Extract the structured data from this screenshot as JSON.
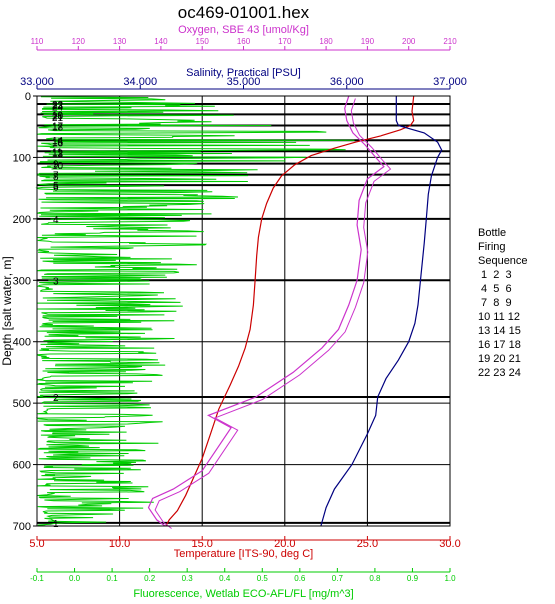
{
  "chart_data": {
    "type": "line",
    "title": "oc469-01001.hex",
    "y_axis": {
      "label": "Depth [salt water, m]",
      "range": [
        0,
        700
      ],
      "ticks": [
        "0",
        "100",
        "200",
        "300",
        "400",
        "500",
        "600",
        "700"
      ]
    },
    "x_axes": [
      {
        "id": "oxygen",
        "label": "Oxygen, SBE 43 [umol/Kg]",
        "color": "#cc33cc",
        "position": "top-1",
        "range": [
          110,
          210
        ],
        "ticks": [
          "110",
          "120",
          "130",
          "140",
          "150",
          "160",
          "170",
          "180",
          "190",
          "200",
          "210"
        ]
      },
      {
        "id": "salinity",
        "label": "Salinity, Practical [PSU]",
        "color": "#000080",
        "position": "top-2",
        "range": [
          33,
          37
        ],
        "ticks": [
          "33.000",
          "34.000",
          "35.000",
          "36.000",
          "37.000"
        ]
      },
      {
        "id": "temperature",
        "label": "Temperature [ITS-90, deg C]",
        "color": "#cc0000",
        "position": "bottom-1",
        "range": [
          5,
          30
        ],
        "ticks": [
          "5.0",
          "10.0",
          "15.0",
          "20.0",
          "25.0",
          "30.0"
        ]
      },
      {
        "id": "fluorescence",
        "label": "Fluorescence, Wetlab ECO-AFL/FL [mg/m^3]",
        "color": "#00cc00",
        "position": "bottom-2",
        "range": [
          -0.1,
          1.0
        ],
        "ticks": [
          "-0.1",
          "0.0",
          "0.1",
          "0.2",
          "0.3",
          "0.4",
          "0.5",
          "0.6",
          "0.7",
          "0.8",
          "0.9",
          "1.0"
        ]
      }
    ],
    "series": [
      {
        "name": "Temperature [ITS-90, deg C]",
        "axis": "temperature",
        "color": "#cc0000",
        "points": [
          [
            27.8,
            0
          ],
          [
            27.7,
            25
          ],
          [
            27.8,
            40
          ],
          [
            27.6,
            48
          ],
          [
            27.0,
            55
          ],
          [
            25.8,
            65
          ],
          [
            24.3,
            75
          ],
          [
            23.0,
            85
          ],
          [
            21.6,
            97
          ],
          [
            20.6,
            112
          ],
          [
            19.8,
            130
          ],
          [
            19.3,
            150
          ],
          [
            18.9,
            175
          ],
          [
            18.6,
            200
          ],
          [
            18.4,
            230
          ],
          [
            18.3,
            260
          ],
          [
            18.2,
            300
          ],
          [
            18.1,
            340
          ],
          [
            17.9,
            380
          ],
          [
            17.6,
            410
          ],
          [
            17.2,
            440
          ],
          [
            16.7,
            470
          ],
          [
            16.0,
            510
          ],
          [
            15.5,
            550
          ],
          [
            15.0,
            590
          ],
          [
            14.5,
            620
          ],
          [
            14.0,
            650
          ],
          [
            13.5,
            675
          ],
          [
            13.0,
            690
          ],
          [
            12.8,
            700
          ]
        ]
      },
      {
        "name": "Salinity, Practical [PSU]",
        "axis": "salinity",
        "color": "#000080",
        "points": [
          [
            36.48,
            0
          ],
          [
            36.48,
            40
          ],
          [
            36.5,
            48
          ],
          [
            36.75,
            60
          ],
          [
            36.88,
            75
          ],
          [
            36.92,
            88
          ],
          [
            36.88,
            100
          ],
          [
            36.82,
            130
          ],
          [
            36.79,
            160
          ],
          [
            36.77,
            200
          ],
          [
            36.75,
            240
          ],
          [
            36.72,
            290
          ],
          [
            36.69,
            340
          ],
          [
            36.66,
            370
          ],
          [
            36.6,
            400
          ],
          [
            36.5,
            430
          ],
          [
            36.38,
            460
          ],
          [
            36.3,
            490
          ],
          [
            36.28,
            520
          ],
          [
            36.2,
            550
          ],
          [
            36.05,
            600
          ],
          [
            35.88,
            640
          ],
          [
            35.8,
            670
          ],
          [
            35.75,
            700
          ]
        ]
      },
      {
        "name": "Oxygen, SBE 43 [umol/Kg]",
        "axis": "oxygen",
        "color": "#cc33cc",
        "points": [
          [
            185.5,
            0
          ],
          [
            184.5,
            20
          ],
          [
            185.0,
            40
          ],
          [
            186.5,
            60
          ],
          [
            189.5,
            80
          ],
          [
            192.0,
            100
          ],
          [
            194.0,
            115
          ],
          [
            190.0,
            135
          ],
          [
            188.0,
            170
          ],
          [
            187.5,
            210
          ],
          [
            188.5,
            250
          ],
          [
            187.5,
            300
          ],
          [
            185.5,
            340
          ],
          [
            183.0,
            380
          ],
          [
            179.0,
            410
          ],
          [
            172.0,
            450
          ],
          [
            163.0,
            490
          ],
          [
            151.5,
            520
          ],
          [
            157.0,
            540
          ],
          [
            153.0,
            580
          ],
          [
            150.0,
            610
          ],
          [
            143.0,
            640
          ],
          [
            138.0,
            655
          ],
          [
            137.0,
            670
          ],
          [
            139.0,
            690
          ],
          [
            141.0,
            700
          ]
        ]
      },
      {
        "name": "Fluorescence, Wetlab ECO-AFL/FL [mg/m^3]",
        "axis": "fluorescence",
        "color": "#00cc00",
        "style": "noisy",
        "profile": [
          [
            0,
            0.25
          ],
          [
            40,
            0.35
          ],
          [
            60,
            0.55
          ],
          [
            80,
            0.62
          ],
          [
            100,
            0.45
          ],
          [
            130,
            0.35
          ],
          [
            200,
            0.28
          ],
          [
            300,
            0.22
          ],
          [
            400,
            0.18
          ],
          [
            500,
            0.17
          ],
          [
            600,
            0.15
          ],
          [
            700,
            0.14
          ]
        ]
      }
    ],
    "bottle_firings": [
      {
        "depth": 695,
        "labels": [
          "1"
        ]
      },
      {
        "depth": 490,
        "labels": [
          "2"
        ]
      },
      {
        "depth": 300,
        "labels": [
          "3"
        ]
      },
      {
        "depth": 200,
        "labels": [
          "4"
        ]
      },
      {
        "depth": 145,
        "labels": [
          "5",
          "6"
        ]
      },
      {
        "depth": 128,
        "labels": [
          "7",
          "8"
        ]
      },
      {
        "depth": 110,
        "labels": [
          "9",
          "10"
        ]
      },
      {
        "depth": 90,
        "labels": [
          "11",
          "12",
          "13"
        ]
      },
      {
        "depth": 72,
        "labels": [
          "14",
          "15",
          "16"
        ]
      },
      {
        "depth": 48,
        "labels": [
          "17",
          "18"
        ]
      },
      {
        "depth": 30,
        "labels": [
          "19",
          "20",
          "21"
        ]
      },
      {
        "depth": 13,
        "labels": [
          "22",
          "23",
          "24"
        ]
      }
    ],
    "legend": {
      "title_lines": [
        "Bottle",
        "Firing",
        "Sequence"
      ],
      "rows": [
        "1  2  3",
        "4  5  6",
        "7  8  9",
        "10 11 12",
        "13 14 15",
        "16 17 18",
        "19 20 21",
        "22 23 24"
      ]
    },
    "grid": true
  }
}
